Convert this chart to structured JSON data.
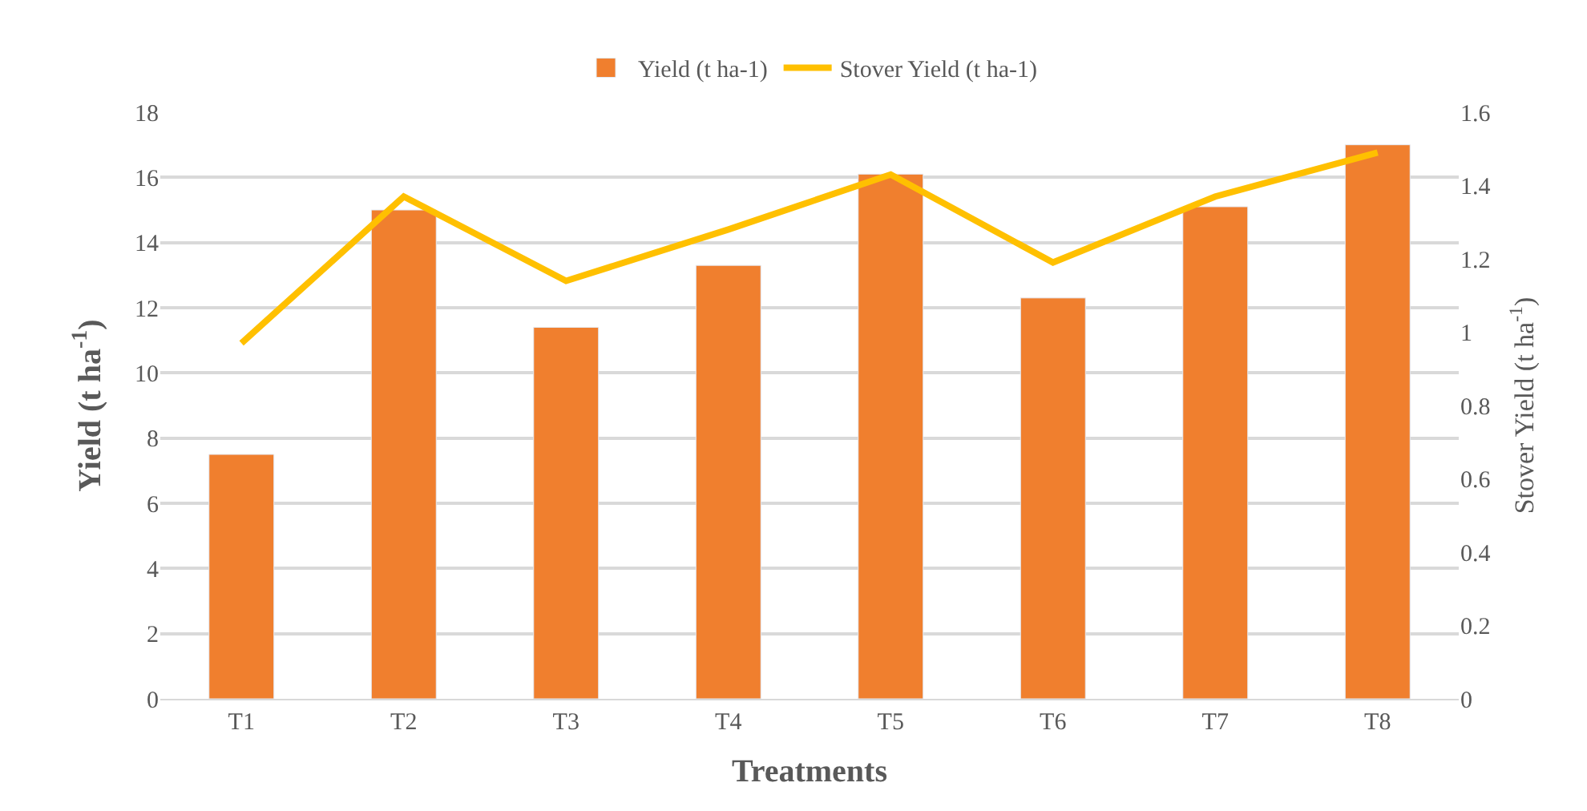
{
  "chart_data": {
    "type": "bar",
    "xlabel": "Treatments",
    "ylabel": "Yield (t ha$^{-1}$)",
    "y2label": "Stover Yield (t ha$^{-1}$)",
    "categories": [
      "T1",
      "T2",
      "T3",
      "T4",
      "T5",
      "T6",
      "T7",
      "T8"
    ],
    "series": [
      {
        "name": "Yield (t ha-1)",
        "color": "#f07f2e",
        "values": [
          7.5,
          15.0,
          11.4,
          13.3,
          16.1,
          12.3,
          15.1,
          17.0
        ]
      },
      {
        "name": "Stover Yield (t ha-1)",
        "type": "line",
        "axis": "y2",
        "color": "#ffc000",
        "values": [
          0.97,
          1.37,
          1.14,
          1.28,
          1.43,
          1.19,
          1.37,
          1.49
        ]
      }
    ],
    "ylim": [
      0,
      18
    ],
    "yticks": [
      0,
      2,
      4,
      6,
      8,
      10,
      12,
      14,
      16,
      18
    ],
    "y2lim": [
      0,
      1.6
    ],
    "y2ticks": [
      0,
      0.2,
      0.4,
      0.6,
      0.8,
      1,
      1.2,
      1.4,
      1.6
    ],
    "grid": "y",
    "legend": "top",
    "marker": "none",
    "line_style": "solid"
  }
}
